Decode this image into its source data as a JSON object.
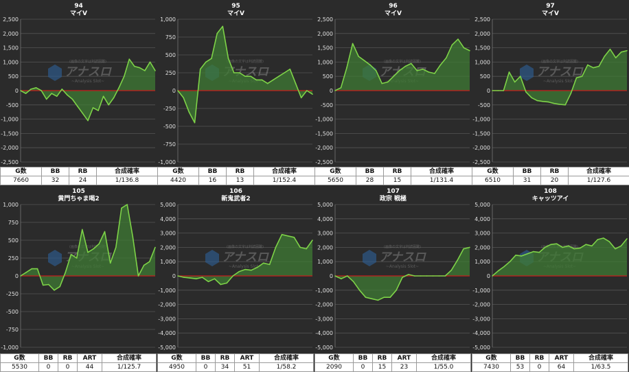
{
  "colors": {
    "line": "#7ed348",
    "fill": "#3f7b34",
    "zero": "#c81e1e",
    "grid": "#555555",
    "bg": "#2b2b2b"
  },
  "watermark": {
    "top": "(画像の文字は判読困難)",
    "main": "アナスロ",
    "sub": "~Analysis Slot~"
  },
  "chart_data": [
    {
      "type": "line",
      "number": "94",
      "title": "マイV",
      "ylim": [
        -2500,
        2500
      ],
      "yticks": [
        "2,500",
        "2,000",
        "1,500",
        "1,000",
        "500",
        "0",
        "-500",
        "-1,000",
        "-1,500",
        "-2,000",
        "-2,500"
      ],
      "values": [
        0,
        -100,
        50,
        100,
        0,
        -300,
        -100,
        -200,
        50,
        -150,
        -300,
        -550,
        -800,
        -1050,
        -600,
        -700,
        -200,
        -500,
        -250,
        100,
        500,
        1100,
        850,
        800,
        700,
        1000,
        700
      ],
      "stats": {
        "headers": [
          "G数",
          "BB",
          "RB",
          "合成確率"
        ],
        "values": [
          "7660",
          "32",
          "24",
          "1/136.8"
        ]
      }
    },
    {
      "type": "line",
      "number": "95",
      "title": "マイV",
      "ylim": [
        -1000,
        1000
      ],
      "yticks": [
        "1,000",
        "750",
        "500",
        "250",
        "0",
        "-250",
        "-500",
        "-750",
        "-1,000"
      ],
      "values": [
        0,
        -100,
        -300,
        -450,
        300,
        400,
        450,
        800,
        900,
        450,
        250,
        250,
        200,
        200,
        150,
        150,
        100,
        150,
        200,
        250,
        300,
        100,
        -100,
        0,
        -50
      ],
      "stats": {
        "headers": [
          "G数",
          "BB",
          "RB",
          "合成確率"
        ],
        "values": [
          "4420",
          "16",
          "13",
          "1/152.4"
        ]
      }
    },
    {
      "type": "line",
      "number": "96",
      "title": "マイV",
      "ylim": [
        -2500,
        2500
      ],
      "yticks": [
        "2,500",
        "2,000",
        "1,500",
        "1,000",
        "500",
        "0",
        "-500",
        "-1,000",
        "-1,500",
        "-2,000",
        "-2,500"
      ],
      "values": [
        0,
        100,
        800,
        1650,
        1200,
        1050,
        900,
        700,
        250,
        300,
        500,
        700,
        850,
        950,
        700,
        750,
        650,
        600,
        900,
        1150,
        1600,
        1800,
        1500,
        1400
      ],
      "stats": {
        "headers": [
          "G数",
          "BB",
          "RB",
          "合成確率"
        ],
        "values": [
          "5650",
          "28",
          "15",
          "1/131.4"
        ]
      }
    },
    {
      "type": "line",
      "number": "97",
      "title": "マイV",
      "ylim": [
        -2500,
        2500
      ],
      "yticks": [
        "2,500",
        "2,000",
        "1,500",
        "1,000",
        "500",
        "0",
        "-500",
        "-1,000",
        "-1,500",
        "-2,000",
        "-2,500"
      ],
      "values": [
        0,
        0,
        0,
        650,
        300,
        500,
        -50,
        -250,
        -350,
        -380,
        -400,
        -450,
        -480,
        -500,
        -100,
        450,
        500,
        900,
        800,
        850,
        1200,
        1450,
        1150,
        1350,
        1400
      ],
      "stats": {
        "headers": [
          "G数",
          "BB",
          "RB",
          "合成確率"
        ],
        "values": [
          "6510",
          "31",
          "20",
          "1/127.6"
        ]
      }
    },
    {
      "type": "line",
      "number": "105",
      "title": "黄門ちゃま喝2",
      "ylim": [
        -1000,
        1000
      ],
      "yticks": [
        "1,000",
        "750",
        "500",
        "250",
        "0",
        "-250",
        "-500",
        "-750",
        "-1,000"
      ],
      "values": [
        0,
        50,
        100,
        100,
        -130,
        -120,
        -200,
        -150,
        50,
        300,
        250,
        650,
        330,
        380,
        450,
        620,
        180,
        400,
        950,
        1000,
        550,
        0,
        150,
        200,
        400
      ],
      "stats": {
        "headers": [
          "G数",
          "BB",
          "RB",
          "ART",
          "合成確率"
        ],
        "values": [
          "5530",
          "0",
          "0",
          "44",
          "1/125.7"
        ]
      }
    },
    {
      "type": "line",
      "number": "106",
      "title": "新鬼武者2",
      "ylim": [
        -5000,
        5000
      ],
      "yticks": [
        "5,000",
        "4,000",
        "3,000",
        "2,000",
        "1,000",
        "0",
        "-1,000",
        "-2,000",
        "-3,000",
        "-4,000",
        "-5,000"
      ],
      "values": [
        0,
        -100,
        -150,
        -200,
        -100,
        -400,
        -200,
        -600,
        -500,
        0,
        300,
        450,
        400,
        600,
        900,
        800,
        2000,
        2900,
        2800,
        2700,
        2000,
        1900,
        2500
      ],
      "stats": {
        "headers": [
          "G数",
          "BB",
          "RB",
          "ART",
          "合成確率"
        ],
        "values": [
          "4950",
          "0",
          "34",
          "51",
          "1/58.2"
        ]
      }
    },
    {
      "type": "line",
      "number": "107",
      "title": "政宗 戦極",
      "ylim": [
        -5000,
        5000
      ],
      "yticks": [
        "5,000",
        "4,000",
        "3,000",
        "2,000",
        "1,000",
        "0",
        "-1,000",
        "-2,000",
        "-3,000",
        "-4,000",
        "-5,000"
      ],
      "values": [
        0,
        -200,
        0,
        -400,
        -1000,
        -1500,
        -1600,
        -1700,
        -1500,
        -1500,
        -1000,
        -100,
        100,
        0,
        0,
        0,
        0,
        0,
        0,
        400,
        1100,
        1900,
        2000
      ],
      "stats": {
        "headers": [
          "G数",
          "BB",
          "RB",
          "ART",
          "合成確率"
        ],
        "values": [
          "2090",
          "0",
          "15",
          "23",
          "1/55.0"
        ]
      }
    },
    {
      "type": "line",
      "number": "108",
      "title": "キャッツアイ",
      "ylim": [
        -5000,
        5000
      ],
      "yticks": [
        "5,000",
        "4,000",
        "3,000",
        "2,000",
        "1,000",
        "0",
        "-1,000",
        "-2,000",
        "-3,000",
        "-4,000",
        "-5,000"
      ],
      "values": [
        0,
        350,
        650,
        1000,
        1450,
        1400,
        1550,
        1700,
        1650,
        2000,
        2200,
        2250,
        2000,
        2100,
        1900,
        1950,
        2200,
        2100,
        2550,
        2650,
        2400,
        1900,
        2100,
        2600
      ],
      "stats": {
        "headers": [
          "G数",
          "BB",
          "RB",
          "ART",
          "合成確率"
        ],
        "values": [
          "7430",
          "53",
          "0",
          "64",
          "1/63.5"
        ]
      }
    }
  ]
}
